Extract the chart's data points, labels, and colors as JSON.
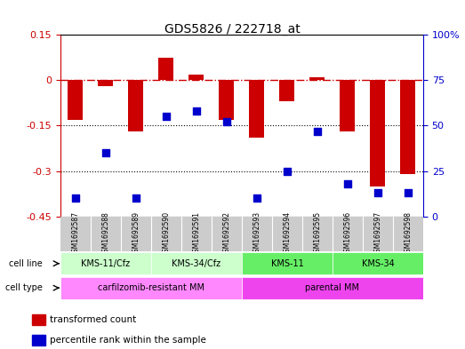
{
  "title": "GDS5826 / 222718_at",
  "samples": [
    "GSM1692587",
    "GSM1692588",
    "GSM1692589",
    "GSM1692590",
    "GSM1692591",
    "GSM1692592",
    "GSM1692593",
    "GSM1692594",
    "GSM1692595",
    "GSM1692596",
    "GSM1692597",
    "GSM1692598"
  ],
  "transformed_counts": [
    -0.13,
    -0.02,
    -0.17,
    0.075,
    0.02,
    -0.13,
    -0.19,
    -0.07,
    0.01,
    -0.17,
    -0.35,
    -0.31
  ],
  "percentile_ranks": [
    10,
    35,
    10,
    55,
    58,
    52,
    10,
    25,
    47,
    18,
    13,
    13
  ],
  "ylim_left": [
    -0.45,
    0.15
  ],
  "ylim_right": [
    0,
    100
  ],
  "yticks_left": [
    0.15,
    0,
    -0.15,
    -0.3,
    -0.45
  ],
  "yticks_right": [
    100,
    75,
    50,
    25,
    0
  ],
  "ytick_left_labels": [
    "0.15",
    "0",
    "-0.15",
    "-0.3",
    "-0.45"
  ],
  "ytick_right_labels": [
    "100%",
    "75",
    "50",
    "25",
    "0"
  ],
  "hline_y": 0,
  "dotted_lines": [
    -0.15,
    -0.3
  ],
  "bar_color": "#cc0000",
  "dot_color": "#0000cc",
  "cell_line_groups": [
    {
      "label": "KMS-11/Cfz",
      "start": 0,
      "end": 3,
      "color": "#ccffcc"
    },
    {
      "label": "KMS-34/Cfz",
      "start": 3,
      "end": 6,
      "color": "#ccffcc"
    },
    {
      "label": "KMS-11",
      "start": 6,
      "end": 9,
      "color": "#66ee66"
    },
    {
      "label": "KMS-34",
      "start": 9,
      "end": 12,
      "color": "#66ee66"
    }
  ],
  "cell_type_groups": [
    {
      "label": "carfilzomib-resistant MM",
      "start": 0,
      "end": 6,
      "color": "#ff88ff"
    },
    {
      "label": "parental MM",
      "start": 6,
      "end": 12,
      "color": "#ee44ee"
    }
  ],
  "legend_items": [
    {
      "color": "#cc0000",
      "label": "transformed count"
    },
    {
      "color": "#0000cc",
      "label": "percentile rank within the sample"
    }
  ],
  "background_color": "#ffffff",
  "plot_bg_color": "#ffffff",
  "sample_bg_color": "#cccccc"
}
